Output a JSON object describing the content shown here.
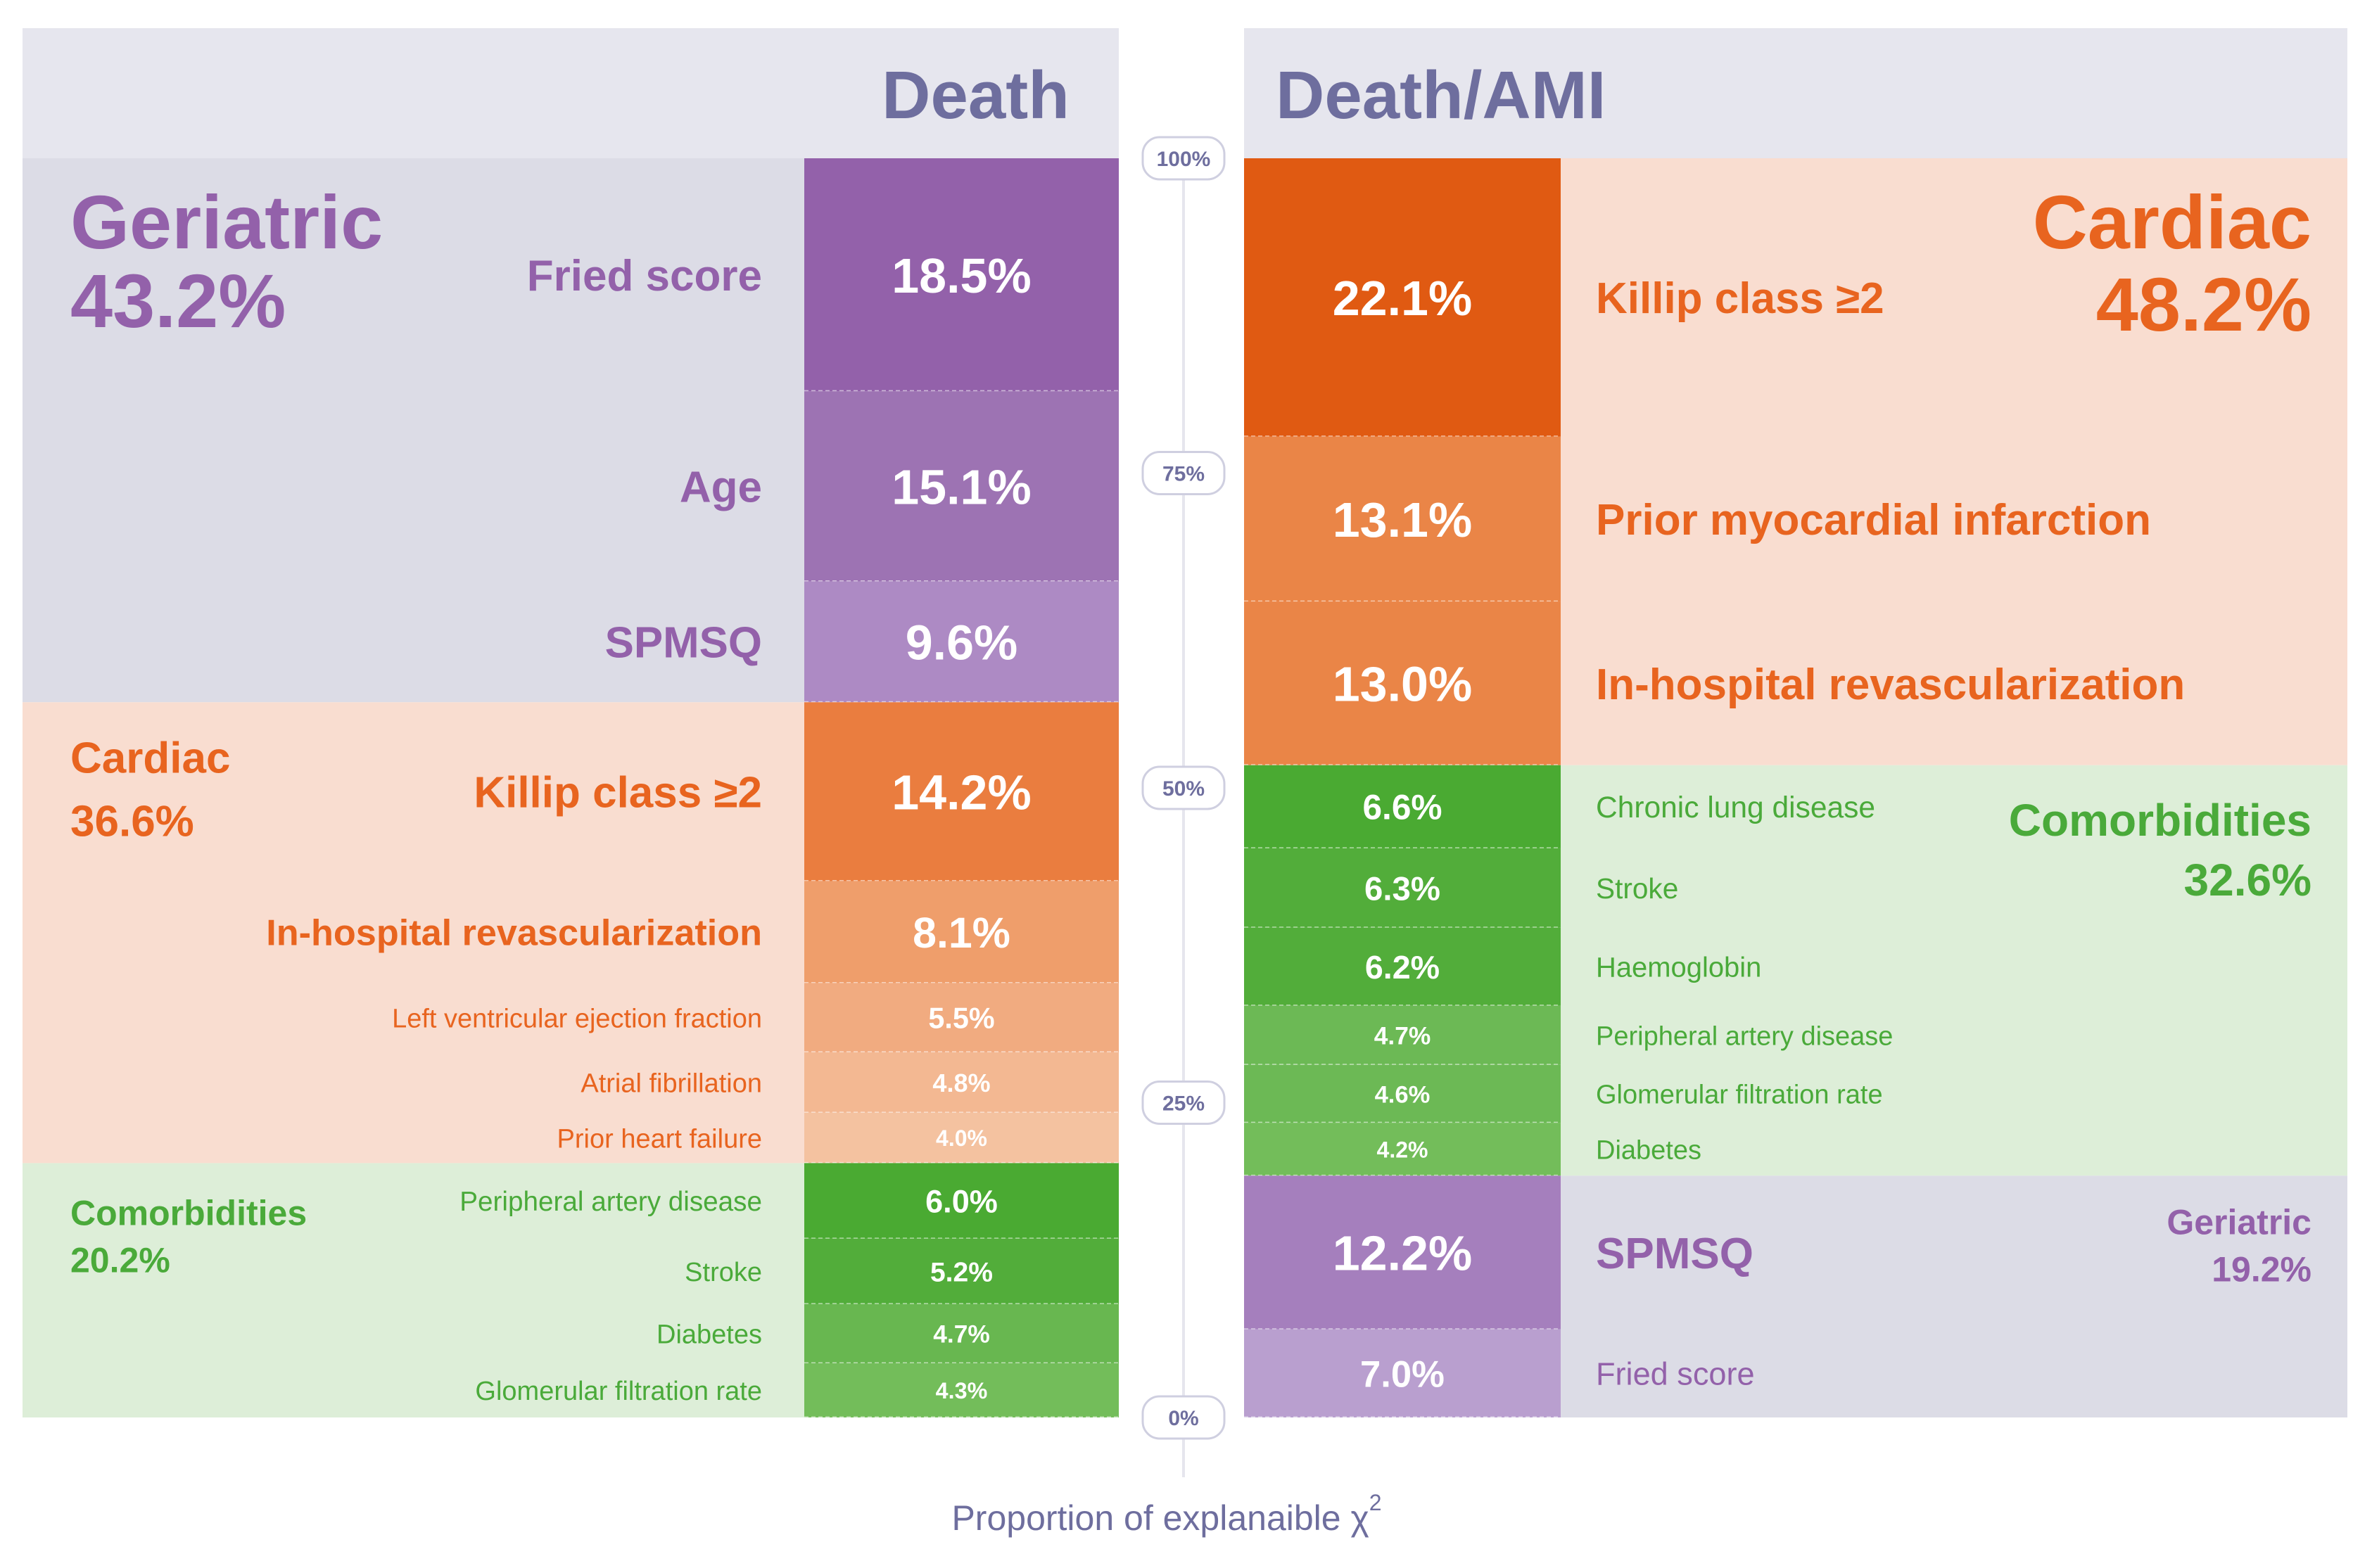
{
  "chart_data": {
    "type": "stacked-bar",
    "title": "",
    "xlabel": "",
    "ylabel": "Proportion of explanaible χ",
    "ylabel_superscript": "2",
    "ylim": [
      0,
      100
    ],
    "axis_ticks": [
      {
        "value": 100,
        "label": "100%"
      },
      {
        "value": 75,
        "label": "75%"
      },
      {
        "value": 50,
        "label": "50%"
      },
      {
        "value": 25,
        "label": "25%"
      },
      {
        "value": 0,
        "label": "0%"
      }
    ],
    "colors": {
      "geriatric_bg": "#dcdce6",
      "cardiac_bg": "#f9ddd0",
      "comorbidities_bg": "#ddeed8",
      "header_bg": "#e6e6ee",
      "header_text": "#6e6e9e",
      "geriatric_text": "#9361aa",
      "cardiac_text": "#e8641f",
      "comorbidities_text": "#4aaa3a",
      "axis_line": "#e6e6ee",
      "tick_text": "#6e6e9e",
      "value_text": "#ffffff"
    },
    "panels": [
      {
        "title": "Death",
        "side": "left",
        "groups": [
          {
            "name": "Geriatric",
            "value_label": "43.2%",
            "value": 43.2,
            "category": "geriatric",
            "items": [
              {
                "label": "Fried score",
                "value": 18.5,
                "value_label": "18.5%",
                "color": "#9361aa"
              },
              {
                "label": "Age",
                "value": 15.1,
                "value_label": "15.1%",
                "color": "#9d73b3"
              },
              {
                "label": "SPMSQ",
                "value": 9.6,
                "value_label": "9.6%",
                "color": "#ad8ac4"
              }
            ]
          },
          {
            "name": "Cardiac",
            "value_label": "36.6%",
            "value": 36.6,
            "category": "cardiac",
            "items": [
              {
                "label": "Killip class ≥2",
                "value": 14.2,
                "value_label": "14.2%",
                "color": "#ea7d3f"
              },
              {
                "label": "In-hospital revascularization",
                "value": 8.1,
                "value_label": "8.1%",
                "color": "#ef9e6b"
              },
              {
                "label": "Left ventricular ejection fraction",
                "value": 5.5,
                "value_label": "5.5%",
                "color": "#f1ab80"
              },
              {
                "label": "Atrial fibrillation",
                "value": 4.8,
                "value_label": "4.8%",
                "color": "#f3b892"
              },
              {
                "label": "Prior heart failure",
                "value": 4.0,
                "value_label": "4.0%",
                "color": "#f4c2a0"
              }
            ]
          },
          {
            "name": "Comorbidities",
            "value_label": "20.2%",
            "value": 20.2,
            "category": "comorbidities",
            "items": [
              {
                "label": "Peripheral artery disease",
                "value": 6.0,
                "value_label": "6.0%",
                "color": "#4aaa32"
              },
              {
                "label": "Stroke",
                "value": 5.2,
                "value_label": "5.2%",
                "color": "#52ad3a"
              },
              {
                "label": "Diabetes",
                "value": 4.7,
                "value_label": "4.7%",
                "color": "#68b750"
              },
              {
                "label": "Glomerular filtration rate",
                "value": 4.3,
                "value_label": "4.3%",
                "color": "#73bd5a"
              }
            ]
          }
        ]
      },
      {
        "title": "Death/AMI",
        "side": "right",
        "groups": [
          {
            "name": "Cardiac",
            "value_label": "48.2%",
            "value": 48.2,
            "category": "cardiac",
            "items": [
              {
                "label": "Killip class ≥2",
                "value": 22.1,
                "value_label": "22.1%",
                "color": "#e05a12"
              },
              {
                "label": "Prior myocardial infarction",
                "value": 13.1,
                "value_label": "13.1%",
                "color": "#ea8547"
              },
              {
                "label": "In-hospital revascularization",
                "value": 13.0,
                "value_label": "13.0%",
                "color": "#ea8547"
              }
            ]
          },
          {
            "name": "Comorbidities",
            "value_label": "32.6%",
            "value": 32.6,
            "category": "comorbidities",
            "items": [
              {
                "label": "Chronic lung disease",
                "value": 6.6,
                "value_label": "6.6%",
                "color": "#4aaa32"
              },
              {
                "label": "Stroke",
                "value": 6.3,
                "value_label": "6.3%",
                "color": "#52ad3a"
              },
              {
                "label": "Haemoglobin",
                "value": 6.2,
                "value_label": "6.2%",
                "color": "#52ad3a"
              },
              {
                "label": "Peripheral artery disease",
                "value": 4.7,
                "value_label": "4.7%",
                "color": "#6cb955"
              },
              {
                "label": "Glomerular filtration rate",
                "value": 4.6,
                "value_label": "4.6%",
                "color": "#6cb955"
              },
              {
                "label": "Diabetes",
                "value": 4.2,
                "value_label": "4.2%",
                "color": "#73bd5a"
              }
            ]
          },
          {
            "name": "Geriatric",
            "value_label": "19.2%",
            "value": 19.2,
            "category": "geriatric",
            "items": [
              {
                "label": "SPMSQ",
                "value": 12.2,
                "value_label": "12.2%",
                "color": "#a57fbd"
              },
              {
                "label": "Fried score",
                "value": 7.0,
                "value_label": "7.0%",
                "color": "#b99fcf"
              }
            ]
          }
        ]
      }
    ]
  }
}
